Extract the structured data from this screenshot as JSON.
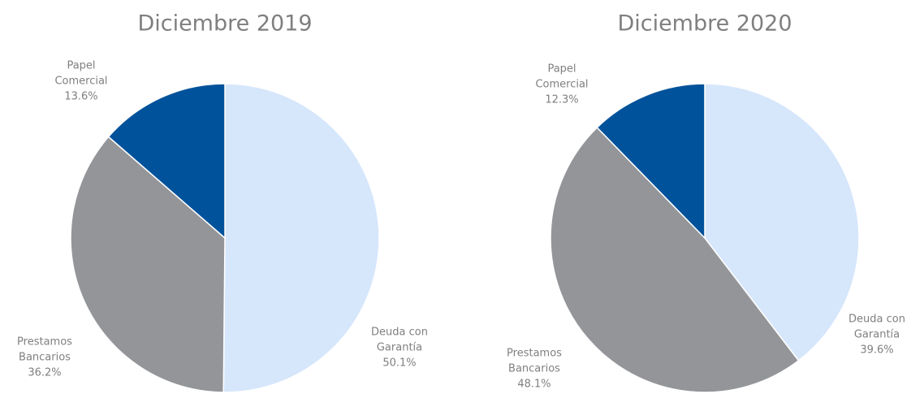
{
  "chart_data": [
    {
      "type": "pie",
      "title": "Diciembre 2019",
      "categories": [
        "Deuda con Garantía",
        "Prestamos Bancarios",
        "Papel Comercial"
      ],
      "values": [
        50.1,
        36.2,
        13.6
      ],
      "value_labels": [
        "50.1%",
        "36.2%",
        "13.6%"
      ],
      "colors": [
        "#d6e6fb",
        "#939598",
        "#00529b"
      ]
    },
    {
      "type": "pie",
      "title": "Diciembre 2020",
      "categories": [
        "Deuda con Garantía",
        "Prestamos Bancarios",
        "Papel Comercial"
      ],
      "values": [
        39.6,
        48.1,
        12.3
      ],
      "value_labels": [
        "39.6%",
        "48.1%",
        "12.3%"
      ],
      "colors": [
        "#d6e6fb",
        "#939598",
        "#00529b"
      ]
    }
  ]
}
